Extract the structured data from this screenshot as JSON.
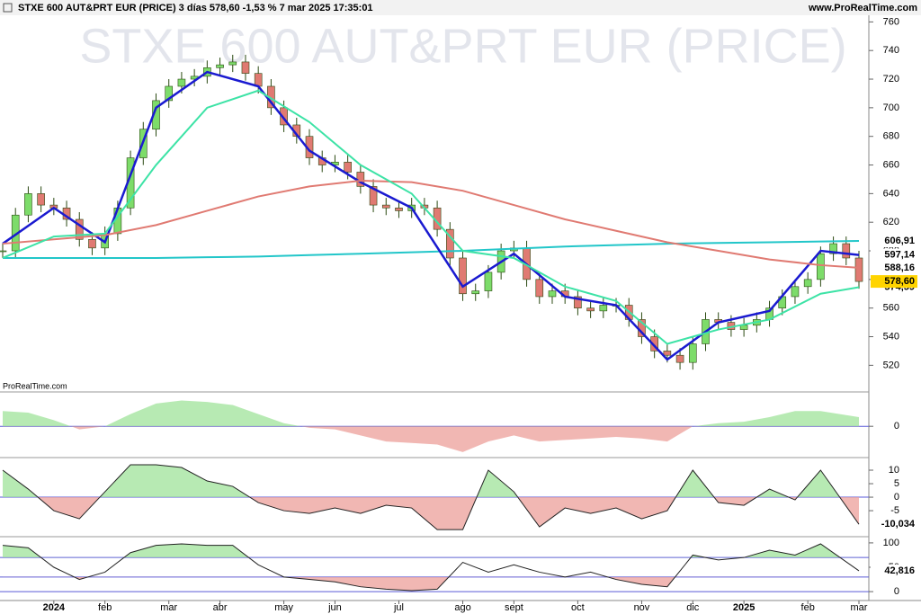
{
  "header": {
    "title": "STXE 600 AUT&PRT EUR (PRICE) 3 días 578,60 -1,53 % 7 mar 2025 17:35:01",
    "site": "www.ProRealTime.com",
    "watermark_small": "ProRealTime.com"
  },
  "chart_data": [
    {
      "type": "candlestick",
      "title": "STXE 600 AUT&PRT EUR (PRICE)",
      "categories": [
        null,
        null,
        null,
        null,
        "2024",
        null,
        null,
        null,
        "feb",
        null,
        null,
        null,
        null,
        "mar",
        null,
        null,
        null,
        "abr",
        null,
        null,
        null,
        null,
        "may",
        null,
        null,
        null,
        "jun",
        null,
        null,
        null,
        null,
        "jul",
        null,
        null,
        null,
        null,
        "ago",
        null,
        null,
        null,
        "sept",
        null,
        null,
        null,
        null,
        "oct",
        null,
        null,
        null,
        null,
        "nov",
        null,
        null,
        null,
        "dic",
        null,
        null,
        null,
        "2025",
        null,
        null,
        null,
        null,
        "feb",
        null,
        null,
        null,
        "mar"
      ],
      "values": [
        600,
        625,
        640,
        632,
        630,
        622,
        608,
        602,
        612,
        630,
        665,
        685,
        705,
        715,
        720,
        722,
        728,
        730,
        732,
        724,
        715,
        700,
        688,
        680,
        665,
        660,
        662,
        655,
        645,
        632,
        630,
        628,
        632,
        630,
        615,
        595,
        570,
        572,
        585,
        600,
        602,
        580,
        568,
        572,
        568,
        560,
        558,
        562,
        562,
        552,
        540,
        530,
        527,
        522,
        535,
        552,
        550,
        545,
        548,
        552,
        560,
        568,
        575,
        580,
        598,
        605,
        595,
        578.6
      ],
      "value_label": "578,60",
      "up_color": "#7ddc6a",
      "down_color": "#e07a72",
      "series": [
        {
          "x": [
            0,
            4,
            8,
            12,
            16,
            20,
            24,
            28,
            32,
            36,
            40,
            44,
            48,
            52,
            56,
            60,
            64,
            67
          ],
          "values": [
            595,
            595,
            595,
            595,
            595.5,
            596,
            597,
            598,
            599,
            600,
            601.5,
            603,
            604,
            605,
            605.5,
            606,
            606.5,
            606.91
          ],
          "color": "#22c6c9",
          "value_label": "606,91"
        },
        {
          "x": [
            0,
            4,
            8,
            12,
            16,
            20,
            24,
            28,
            32,
            36,
            40,
            44,
            48,
            52,
            56,
            60,
            64,
            67
          ],
          "values": [
            605,
            630,
            606,
            700,
            725,
            715,
            670,
            648,
            630,
            575,
            598,
            568,
            562,
            524,
            550,
            558,
            600,
            597.14
          ],
          "color": "#1a1ad0",
          "badge_color": "#e0302a",
          "value_label": "597,14"
        },
        {
          "x": [
            0,
            4,
            8,
            12,
            16,
            20,
            24,
            28,
            32,
            36,
            40,
            44,
            48,
            52,
            56,
            60,
            64,
            67
          ],
          "values": [
            605,
            608,
            611,
            618,
            628,
            638,
            645,
            649,
            648,
            642,
            632,
            622,
            614,
            606,
            600,
            594,
            590,
            588.16
          ],
          "color": "#e07a72",
          "value_label": "588,16"
        },
        {
          "x": [
            0,
            4,
            8,
            12,
            16,
            20,
            24,
            28,
            32,
            36,
            40,
            44,
            48,
            52,
            56,
            60,
            64,
            67
          ],
          "values": [
            595,
            610,
            612,
            660,
            700,
            712,
            690,
            660,
            640,
            600,
            595,
            575,
            565,
            535,
            545,
            552,
            570,
            574.59
          ],
          "color": "#3de3a6",
          "value_label": "574,59"
        }
      ],
      "xlim": [
        0,
        67
      ],
      "ylim": [
        502,
        764
      ],
      "yticks": [
        760,
        740,
        720,
        700,
        680,
        660,
        640,
        620,
        600,
        580,
        560,
        540,
        520
      ]
    },
    {
      "type": "area",
      "x": [
        0,
        2,
        4,
        6,
        8,
        10,
        12,
        14,
        16,
        18,
        20,
        22,
        24,
        26,
        28,
        30,
        32,
        34,
        36,
        38,
        40,
        42,
        44,
        46,
        48,
        50,
        52,
        54,
        56,
        58,
        60,
        62,
        64,
        67
      ],
      "values": [
        0.5,
        0.45,
        0.2,
        -0.1,
        0,
        0.4,
        0.75,
        0.85,
        0.8,
        0.7,
        0.4,
        0.1,
        -0.05,
        -0.1,
        -0.3,
        -0.5,
        -0.55,
        -0.6,
        -0.85,
        -0.5,
        -0.3,
        -0.5,
        -0.45,
        -0.4,
        -0.35,
        -0.4,
        -0.5,
        0,
        0.1,
        0.15,
        0.3,
        0.5,
        0.5,
        0.3
      ],
      "xlim": [
        0,
        67
      ],
      "ylim": [
        -1,
        1.1
      ],
      "yticks": [
        0
      ]
    },
    {
      "type": "area",
      "x": [
        0,
        2,
        4,
        6,
        8,
        10,
        12,
        14,
        16,
        18,
        20,
        22,
        24,
        26,
        28,
        30,
        32,
        34,
        36,
        38,
        40,
        42,
        44,
        46,
        48,
        50,
        52,
        54,
        56,
        58,
        60,
        62,
        64,
        67
      ],
      "values": [
        10,
        3,
        -5,
        -8,
        2,
        12,
        12,
        11,
        6,
        4,
        -2,
        -5,
        -6,
        -4,
        -6,
        -3,
        -4,
        -12,
        -12,
        10,
        2,
        -11,
        -4,
        -6,
        -4,
        -8,
        -5,
        10,
        -2,
        -3,
        3,
        -1,
        10,
        -10.034
      ],
      "value_label": "-10,034",
      "xlim": [
        0,
        67
      ],
      "ylim": [
        -14.3,
        14
      ],
      "yticks": [
        10,
        5,
        0,
        -5
      ]
    },
    {
      "type": "area",
      "x": [
        0,
        2,
        4,
        6,
        8,
        10,
        12,
        14,
        16,
        18,
        20,
        22,
        24,
        26,
        28,
        30,
        32,
        34,
        36,
        38,
        40,
        42,
        44,
        46,
        48,
        50,
        52,
        54,
        56,
        58,
        60,
        62,
        64,
        67
      ],
      "values": [
        95,
        90,
        50,
        25,
        40,
        80,
        95,
        98,
        95,
        95,
        55,
        30,
        25,
        20,
        10,
        5,
        2,
        5,
        60,
        40,
        55,
        40,
        30,
        40,
        25,
        15,
        10,
        75,
        65,
        70,
        85,
        75,
        98,
        42.816
      ],
      "value_label": "42,816",
      "levels": [
        70,
        30
      ],
      "xlim": [
        0,
        67
      ],
      "ylim": [
        -16.4,
        110.9
      ],
      "yticks": [
        100,
        50,
        0
      ]
    }
  ]
}
